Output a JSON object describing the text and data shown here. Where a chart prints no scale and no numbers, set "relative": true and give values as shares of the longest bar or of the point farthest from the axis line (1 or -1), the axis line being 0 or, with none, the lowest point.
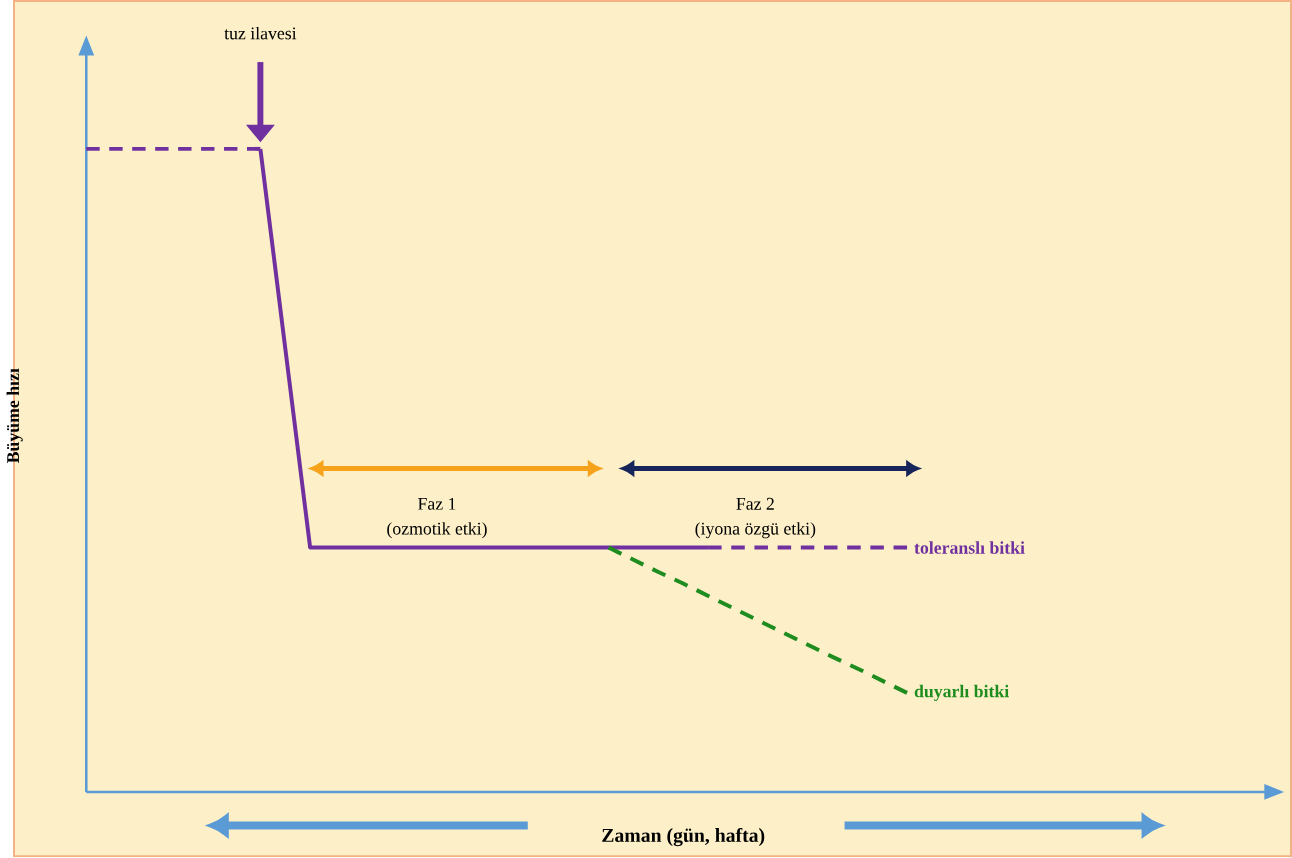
{
  "chart_data": {
    "type": "line",
    "relative": true,
    "xlabel": "Zaman (gün, hafta)",
    "ylabel": "Büyüme hızı",
    "legend": false,
    "categories": [
      null,
      null,
      null,
      null,
      null,
      null,
      null,
      null,
      null,
      null,
      null,
      null,
      null,
      null,
      null,
      null,
      null,
      null,
      null,
      null,
      null,
      null,
      null,
      null,
      null,
      null,
      null,
      null,
      null,
      null,
      null,
      null,
      null,
      null,
      null,
      null,
      null,
      null,
      null,
      null,
      null,
      null,
      null,
      null,
      null,
      null,
      null,
      null,
      null
    ],
    "series": [
      {
        "color": "#7030a0",
        "line_style": "dashed",
        "values": [
          1,
          1,
          1,
          1,
          1,
          1,
          1,
          1,
          null,
          null,
          null,
          null,
          null,
          null,
          null,
          null,
          null,
          null,
          null,
          null,
          null,
          null,
          null,
          null,
          null,
          null,
          null,
          null,
          null,
          null,
          null,
          null,
          null,
          null,
          null,
          null,
          null,
          null,
          null,
          null,
          null,
          null,
          null,
          null,
          null,
          null,
          null,
          null,
          null
        ]
      },
      {
        "color": "#7030a0",
        "line_style": "solid",
        "values": [
          null,
          null,
          null,
          null,
          null,
          null,
          null,
          1,
          0.69,
          0.38,
          0.38,
          0.38,
          0.38,
          0.38,
          0.38,
          0.38,
          0.38,
          0.38,
          0.38,
          0.38,
          0.38,
          0.38,
          0.38,
          0.38,
          0.38,
          0.38,
          null,
          null,
          null,
          null,
          null,
          null,
          null,
          null,
          null,
          null,
          null,
          null,
          null,
          null,
          null,
          null,
          null,
          null,
          null,
          null,
          null,
          null,
          null
        ]
      },
      {
        "name": "toleranslı bitki",
        "color": "#7030a0",
        "line_style": "dashed",
        "values": [
          null,
          null,
          null,
          null,
          null,
          null,
          null,
          null,
          null,
          null,
          null,
          null,
          null,
          null,
          null,
          null,
          null,
          null,
          null,
          null,
          null,
          null,
          null,
          null,
          null,
          0.38,
          0.38,
          0.38,
          0.38,
          0.38,
          0.38,
          0.38,
          0.38,
          0.38,
          null,
          null,
          null,
          null,
          null,
          null,
          null,
          null,
          null,
          null,
          null,
          null,
          null,
          null,
          null
        ]
      },
      {
        "name": "duyarlı bitki",
        "color": "#1e8c1e",
        "line_style": "dashed",
        "values": [
          null,
          null,
          null,
          null,
          null,
          null,
          null,
          null,
          null,
          null,
          null,
          null,
          null,
          null,
          null,
          null,
          null,
          null,
          null,
          null,
          null,
          0.38,
          0.361,
          0.342,
          0.324,
          0.305,
          0.286,
          0.267,
          0.248,
          0.229,
          0.21,
          0.192,
          0.173,
          0.154,
          null,
          null,
          null,
          null,
          null,
          null,
          null,
          null,
          null,
          null,
          null,
          null,
          null,
          null,
          null
        ]
      }
    ],
    "annotations": [
      "tuz ilavesi",
      "Faz 1",
      "(ozmotik etki)",
      "Faz 2",
      "(iyona özgü etki)"
    ]
  }
}
